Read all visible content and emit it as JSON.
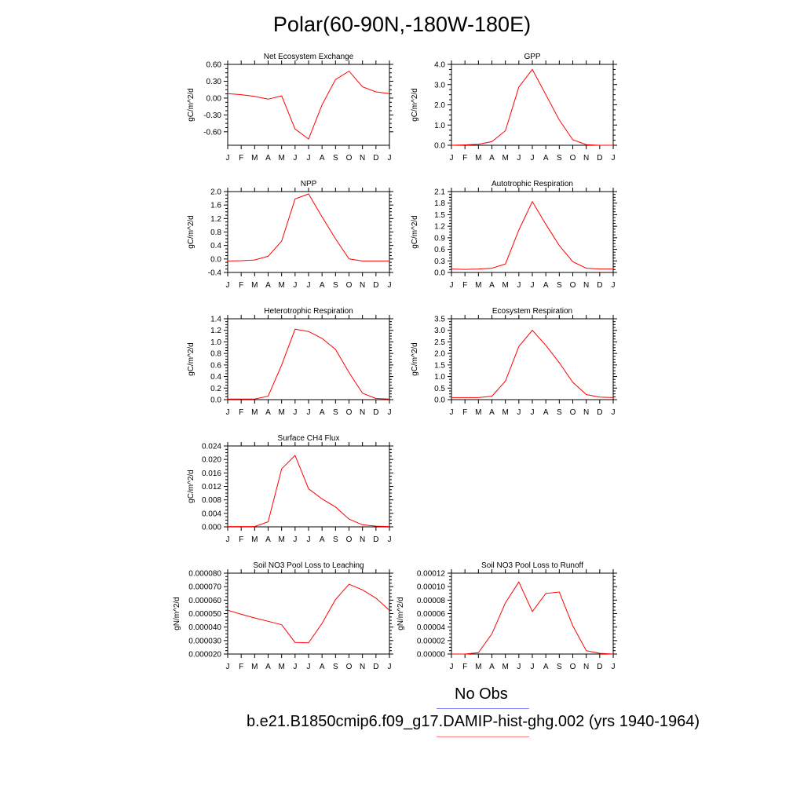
{
  "page": {
    "title": "Polar(60-90N,-180W-180E)"
  },
  "legend": {
    "items": [
      {
        "label": "No Obs",
        "color": "#8080ff"
      },
      {
        "label": "b.e21.B1850cmip6.f09_g17.DAMIP-hist-ghg.002 (yrs 1940-1964)",
        "color": "#ff8080"
      }
    ]
  },
  "chart_data": [
    {
      "id": "nee",
      "type": "line",
      "title": "Net Ecosystem Exchange",
      "xlabel": "",
      "ylabel": "gC/m^2/d",
      "categories": [
        "J",
        "F",
        "M",
        "A",
        "M",
        "J",
        "J",
        "A",
        "S",
        "O",
        "N",
        "D",
        "J"
      ],
      "ylim": [
        -0.84,
        0.6
      ],
      "yticks": [
        0.6,
        0.3,
        0.0,
        -0.3,
        -0.6
      ],
      "ytick_labels": [
        "0.60",
        "0.30",
        "0.00",
        "-0.30",
        "-0.60"
      ],
      "series": [
        {
          "color": "#ff0000",
          "values": [
            0.08,
            0.06,
            0.03,
            -0.02,
            0.04,
            -0.55,
            -0.73,
            -0.12,
            0.33,
            0.48,
            0.2,
            0.11,
            0.08
          ]
        }
      ]
    },
    {
      "id": "gpp",
      "type": "line",
      "title": "GPP",
      "xlabel": "",
      "ylabel": "gC/m^2/d",
      "categories": [
        "J",
        "F",
        "M",
        "A",
        "M",
        "J",
        "J",
        "A",
        "S",
        "O",
        "N",
        "D",
        "J"
      ],
      "ylim": [
        0,
        4.0
      ],
      "yticks": [
        4.0,
        3.0,
        2.0,
        1.0,
        0.0
      ],
      "ytick_labels": [
        "4.0",
        "3.0",
        "2.0",
        "1.0",
        "0.0"
      ],
      "series": [
        {
          "color": "#ff0000",
          "values": [
            0.0,
            0.02,
            0.05,
            0.18,
            0.72,
            2.88,
            3.75,
            2.5,
            1.25,
            0.27,
            0.03,
            0.0,
            0.0
          ]
        }
      ]
    },
    {
      "id": "npp",
      "type": "line",
      "title": "NPP",
      "xlabel": "",
      "ylabel": "gC/m^2/d",
      "categories": [
        "J",
        "F",
        "M",
        "A",
        "M",
        "J",
        "J",
        "A",
        "S",
        "O",
        "N",
        "D",
        "J"
      ],
      "ylim": [
        -0.4,
        2.0
      ],
      "yticks": [
        2.0,
        1.6,
        1.2,
        0.8,
        0.4,
        0.0,
        -0.4
      ],
      "ytick_labels": [
        "2.0",
        "1.6",
        "1.2",
        "0.8",
        "0.4",
        "0.0",
        "-0.4"
      ],
      "series": [
        {
          "color": "#ff0000",
          "values": [
            -0.06,
            -0.05,
            -0.03,
            0.08,
            0.53,
            1.78,
            1.93,
            1.25,
            0.6,
            0.0,
            -0.06,
            -0.06,
            -0.06
          ]
        }
      ]
    },
    {
      "id": "ar",
      "type": "line",
      "title": "Autotrophic Respiration",
      "xlabel": "",
      "ylabel": "gC/m^2/d",
      "categories": [
        "J",
        "F",
        "M",
        "A",
        "M",
        "J",
        "J",
        "A",
        "S",
        "O",
        "N",
        "D",
        "J"
      ],
      "ylim": [
        0,
        2.1
      ],
      "yticks": [
        2.1,
        1.8,
        1.5,
        1.2,
        0.9,
        0.6,
        0.3,
        0.0
      ],
      "ytick_labels": [
        "2.1",
        "1.8",
        "1.5",
        "1.2",
        "0.9",
        "0.6",
        "0.3",
        "0.0"
      ],
      "series": [
        {
          "color": "#ff0000",
          "values": [
            0.09,
            0.08,
            0.09,
            0.11,
            0.22,
            1.1,
            1.84,
            1.25,
            0.7,
            0.28,
            0.11,
            0.09,
            0.09
          ]
        }
      ]
    },
    {
      "id": "hr",
      "type": "line",
      "title": "Heterotrophic Respiration",
      "xlabel": "",
      "ylabel": "gC/m^2/d",
      "categories": [
        "J",
        "F",
        "M",
        "A",
        "M",
        "J",
        "J",
        "A",
        "S",
        "O",
        "N",
        "D",
        "J"
      ],
      "ylim": [
        0,
        1.4
      ],
      "yticks": [
        1.4,
        1.2,
        1.0,
        0.8,
        0.6,
        0.4,
        0.2,
        0.0
      ],
      "ytick_labels": [
        "1.4",
        "1.2",
        "1.0",
        "0.8",
        "0.6",
        "0.4",
        "0.2",
        "0.0"
      ],
      "series": [
        {
          "color": "#ff0000",
          "values": [
            0.01,
            0.01,
            0.01,
            0.06,
            0.6,
            1.22,
            1.18,
            1.06,
            0.87,
            0.47,
            0.11,
            0.02,
            0.01
          ]
        }
      ]
    },
    {
      "id": "er",
      "type": "line",
      "title": "Ecosystem Respiration",
      "xlabel": "",
      "ylabel": "gC/m^2/d",
      "categories": [
        "J",
        "F",
        "M",
        "A",
        "M",
        "J",
        "J",
        "A",
        "S",
        "O",
        "N",
        "D",
        "J"
      ],
      "ylim": [
        0,
        3.5
      ],
      "yticks": [
        3.5,
        3.0,
        2.5,
        2.0,
        1.5,
        1.0,
        0.5,
        0.0
      ],
      "ytick_labels": [
        "3.5",
        "3.0",
        "2.5",
        "2.0",
        "1.5",
        "1.0",
        "0.5",
        "0.0"
      ],
      "series": [
        {
          "color": "#ff0000",
          "values": [
            0.09,
            0.09,
            0.09,
            0.15,
            0.8,
            2.3,
            3.0,
            2.35,
            1.6,
            0.75,
            0.22,
            0.11,
            0.09
          ]
        }
      ]
    },
    {
      "id": "ch4",
      "type": "line",
      "title": "Surface CH4 Flux",
      "xlabel": "",
      "ylabel": "gC/m^2/d",
      "categories": [
        "J",
        "F",
        "M",
        "A",
        "M",
        "J",
        "J",
        "A",
        "S",
        "O",
        "N",
        "D",
        "J"
      ],
      "ylim": [
        0,
        0.024
      ],
      "yticks": [
        0.024,
        0.02,
        0.016,
        0.012,
        0.008,
        0.004,
        0.0
      ],
      "ytick_labels": [
        "0.024",
        "0.020",
        "0.016",
        "0.012",
        "0.008",
        "0.004",
        "0.000"
      ],
      "series": [
        {
          "color": "#ff0000",
          "values": [
            0.0001,
            0.0001,
            0.0001,
            0.0015,
            0.0172,
            0.0212,
            0.0113,
            0.0083,
            0.0059,
            0.0023,
            0.0006,
            0.0002,
            0.0001
          ]
        }
      ]
    },
    {
      "id": "leach",
      "type": "line",
      "title": "Soil NO3 Pool Loss to Leaching",
      "xlabel": "",
      "ylabel": "gN/m^2/d",
      "categories": [
        "J",
        "F",
        "M",
        "A",
        "M",
        "J",
        "J",
        "A",
        "S",
        "O",
        "N",
        "D",
        "J"
      ],
      "ylim": [
        2e-05,
        8e-05
      ],
      "yticks": [
        8e-05,
        7e-05,
        6e-05,
        5e-05,
        4e-05,
        3e-05,
        2e-05
      ],
      "ytick_labels": [
        "0.000080",
        "0.000070",
        "0.000060",
        "0.000050",
        "0.000040",
        "0.000030",
        "0.000020"
      ],
      "series": [
        {
          "color": "#ff0000",
          "values": [
            5.25e-05,
            4.95e-05,
            4.68e-05,
            4.43e-05,
            4.17e-05,
            2.86e-05,
            2.83e-05,
            4.28e-05,
            6.04e-05,
            7.18e-05,
            6.76e-05,
            6.15e-05,
            5.25e-05
          ]
        }
      ]
    },
    {
      "id": "runoff",
      "type": "line",
      "title": "Soil NO3 Pool Loss to Runoff",
      "xlabel": "",
      "ylabel": "gN/m^2/d",
      "categories": [
        "J",
        "F",
        "M",
        "A",
        "M",
        "J",
        "J",
        "A",
        "S",
        "O",
        "N",
        "D",
        "J"
      ],
      "ylim": [
        0,
        0.00012
      ],
      "yticks": [
        0.00012,
        0.0001,
        8e-05,
        6e-05,
        4e-05,
        2e-05,
        0.0
      ],
      "ytick_labels": [
        "0.00012",
        "0.00010",
        "0.00008",
        "0.00006",
        "0.00004",
        "0.00002",
        "0.00000"
      ],
      "series": [
        {
          "color": "#ff0000",
          "values": [
            0.0,
            0.0,
            2e-06,
            3e-05,
            7.6e-05,
            0.000107,
            6.3e-05,
            9e-05,
            9.2e-05,
            4.2e-05,
            5e-06,
            1e-06,
            0.0
          ]
        }
      ]
    }
  ]
}
